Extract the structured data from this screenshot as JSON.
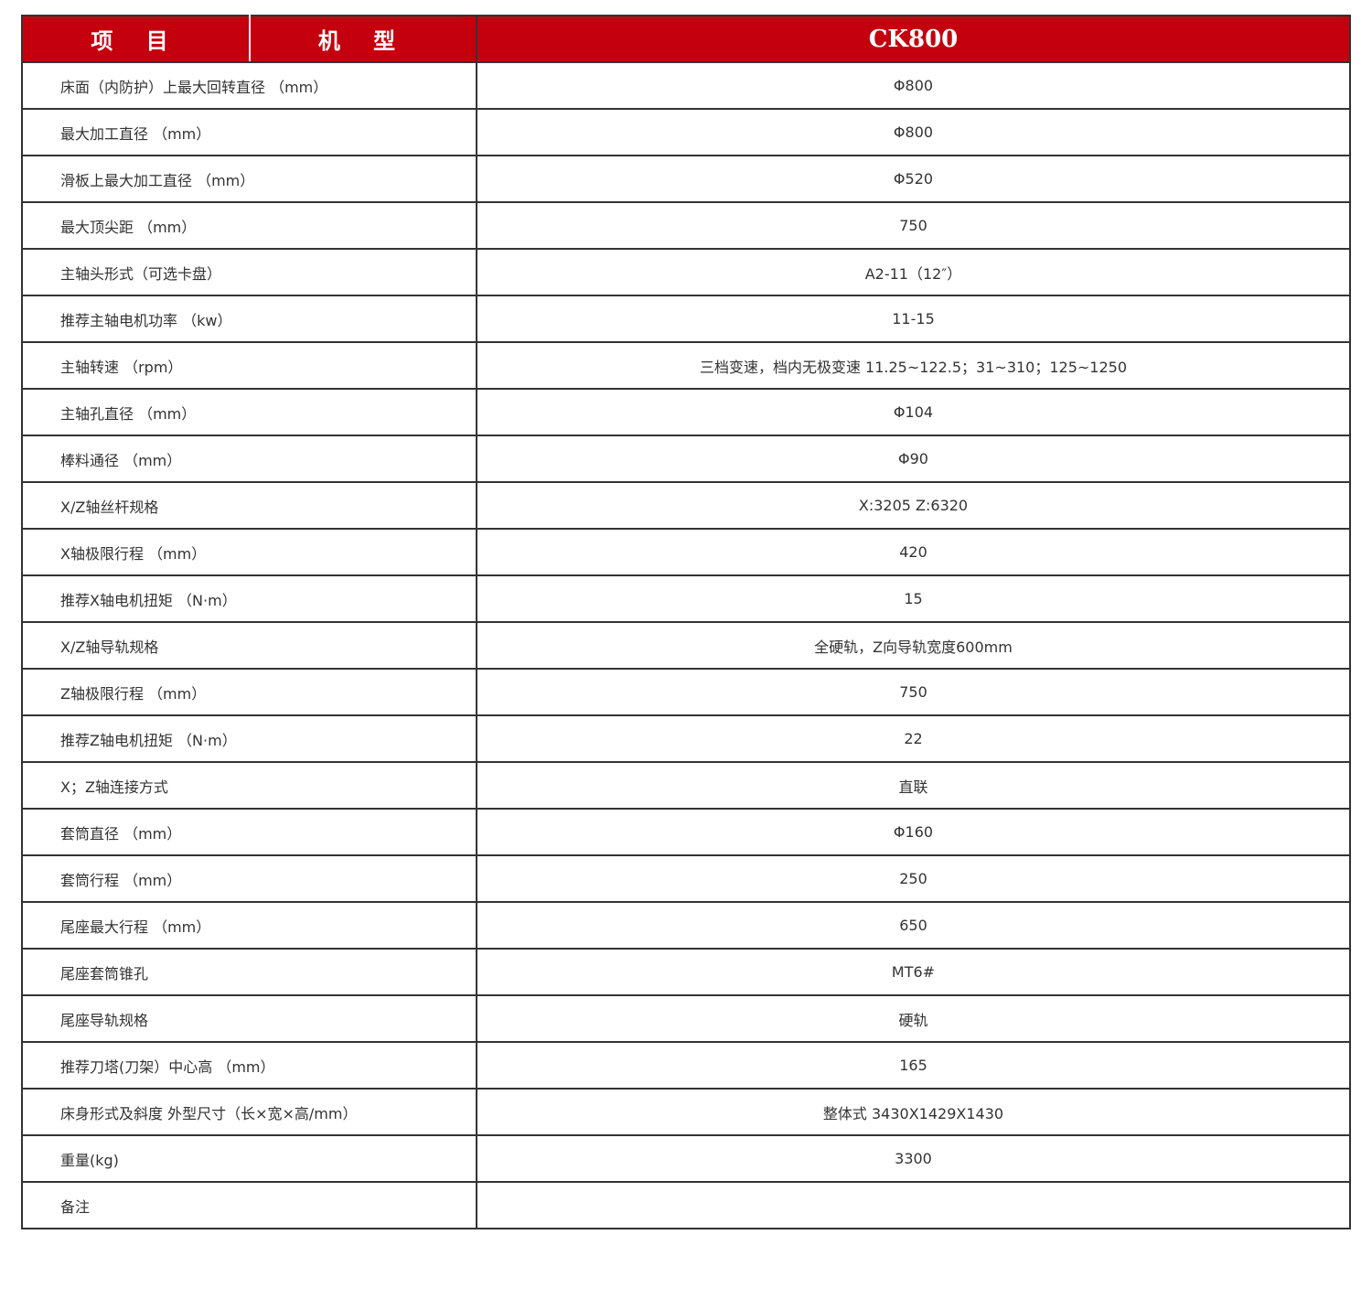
{
  "header": {
    "col1": "项 目",
    "col2": "机 型",
    "model": "CK800"
  },
  "header_color": "#c4000e",
  "rows": [
    {
      "label": "床面（内防护）上最大回转直径 （mm）",
      "value": "Φ800"
    },
    {
      "label": "最大加工直径 （mm）",
      "value": "Φ800"
    },
    {
      "label": "滑板上最大加工直径 （mm）",
      "value": "Φ520"
    },
    {
      "label": "最大顶尖距 （mm）",
      "value": "750"
    },
    {
      "label": "主轴头形式（可选卡盘）",
      "value": "A2-11（12″）"
    },
    {
      "label": "推荐主轴电机功率 （kw）",
      "value": "11-15"
    },
    {
      "label": "主轴转速 （rpm）",
      "value": "三档变速，档内无极变速  11.25~122.5；31~310；125~1250"
    },
    {
      "label": "主轴孔直径 （mm）",
      "value": "Φ104"
    },
    {
      "label": "棒料通径 （mm）",
      "value": "Φ90"
    },
    {
      "label": "X/Z轴丝杆规格",
      "value": "X:3205 Z:6320"
    },
    {
      "label": "X轴极限行程 （mm）",
      "value": "420"
    },
    {
      "label": "推荐X轴电机扭矩 （N·m）",
      "value": "15"
    },
    {
      "label": "X/Z轴导轨规格",
      "value": "全硬轨，Z向导轨宽度600mm"
    },
    {
      "label": "Z轴极限行程 （mm）",
      "value": "750"
    },
    {
      "label": "推荐Z轴电机扭矩 （N·m）",
      "value": "22"
    },
    {
      "label": "X；Z轴连接方式",
      "value": "直联"
    },
    {
      "label": "套筒直径 （mm）",
      "value": "Φ160"
    },
    {
      "label": "套筒行程 （mm）",
      "value": "250"
    },
    {
      "label": "尾座最大行程 （mm）",
      "value": "650"
    },
    {
      "label": "尾座套筒锥孔",
      "value": "MT6#"
    },
    {
      "label": "尾座导轨规格",
      "value": "硬轨"
    },
    {
      "label": "推荐刀塔(刀架）中心高 （mm）",
      "value": "165"
    },
    {
      "label": "床身形式及斜度  外型尺寸（长×宽×高/mm）",
      "value": "整体式  3430X1429X1430"
    },
    {
      "label": "重量(kg)",
      "value": "3300"
    },
    {
      "label": "备注",
      "value": ""
    }
  ]
}
